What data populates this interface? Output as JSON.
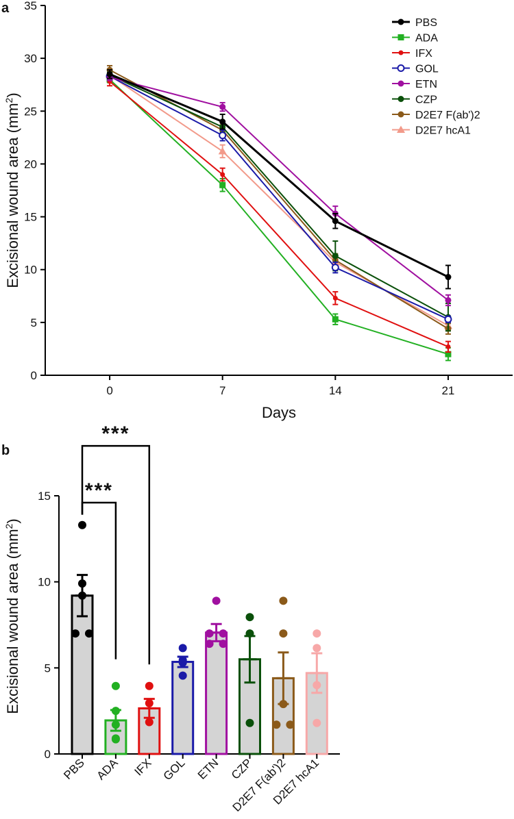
{
  "chart_data": [
    {
      "panel_label": "a",
      "type": "line",
      "xlabel": "Days",
      "ylabel_main": "Excisional wound area (mm",
      "ylabel_sup": "2",
      "ylabel_end": ")",
      "x": [
        0,
        7,
        14,
        21
      ],
      "xticks": [
        "0",
        "7",
        "14",
        "21"
      ],
      "xlim": [
        -4,
        25
      ],
      "ylim": [
        0,
        35
      ],
      "yticks": [
        "0",
        "5",
        "10",
        "15",
        "20",
        "25",
        "30",
        "35"
      ],
      "legend_position": "top-right",
      "series": [
        {
          "name": "PBS",
          "color": "#000000",
          "marker": "circle-filled",
          "values": [
            28.5,
            24.0,
            14.6,
            9.3
          ],
          "err": [
            0.4,
            0.7,
            0.7,
            1.1
          ]
        },
        {
          "name": "ADA",
          "color": "#22b022",
          "marker": "square",
          "values": [
            28.0,
            18.0,
            5.3,
            2.0
          ],
          "err": [
            0.3,
            0.6,
            0.5,
            0.6
          ]
        },
        {
          "name": "IFX",
          "color": "#e01010",
          "marker": "circle-small",
          "values": [
            27.8,
            19.0,
            7.3,
            2.7
          ],
          "err": [
            0.4,
            0.6,
            0.6,
            0.5
          ]
        },
        {
          "name": "GOL",
          "color": "#1a1aa8",
          "marker": "circle-open",
          "values": [
            28.3,
            22.7,
            10.2,
            5.3
          ],
          "err": [
            0.3,
            0.5,
            0.5,
            0.3
          ]
        },
        {
          "name": "ETN",
          "color": "#a010a0",
          "marker": "circle-filled",
          "values": [
            28.2,
            25.4,
            15.3,
            7.1
          ],
          "err": [
            0.3,
            0.4,
            0.7,
            0.5
          ]
        },
        {
          "name": "CZP",
          "color": "#0a500a",
          "marker": "circle-filled",
          "values": [
            28.4,
            23.5,
            11.3,
            5.5
          ],
          "err": [
            0.3,
            0.5,
            1.4,
            1.3
          ]
        },
        {
          "name": "D2E7 F(ab')2",
          "color": "#8b5a1a",
          "marker": "circle-filled",
          "values": [
            28.9,
            23.2,
            10.9,
            4.4
          ],
          "err": [
            0.4,
            0.5,
            0.6,
            0.5
          ]
        },
        {
          "name": "D2E7 hcA1",
          "color": "#f29a8a",
          "marker": "triangle",
          "values": [
            28.4,
            21.2,
            10.7,
            4.7
          ],
          "err": [
            0.4,
            0.6,
            0.6,
            0.5
          ]
        }
      ]
    },
    {
      "panel_label": "b",
      "type": "bar",
      "ylabel_main": "Excisional wound area (mm",
      "ylabel_sup": "2",
      "ylabel_end": ")",
      "ylim": [
        0,
        15
      ],
      "yticks": [
        "0",
        "5",
        "10",
        "15"
      ],
      "categories": [
        "PBS",
        "ADA",
        "IFX",
        "GOL",
        "ETN",
        "CZP",
        "D2E7 F(ab')2",
        "D2E7 hcA1"
      ],
      "colors": [
        "#000000",
        "#22b022",
        "#e01010",
        "#1a1aa8",
        "#a010a0",
        "#0a500a",
        "#8b5a1a",
        "#f7a8a8"
      ],
      "bar_fill": "#d4d4d4",
      "values": [
        9.2,
        1.95,
        2.65,
        5.35,
        7.05,
        5.5,
        4.4,
        4.7
      ],
      "err": [
        1.2,
        0.6,
        0.55,
        0.3,
        0.5,
        1.35,
        1.5,
        1.15
      ],
      "points": [
        [
          13.3,
          9.9,
          9.2,
          7.0,
          7.0
        ],
        [
          3.95,
          2.5,
          1.7,
          0.85,
          0.9
        ],
        [
          3.95,
          2.95,
          1.85
        ],
        [
          6.15,
          5.45,
          5.3,
          4.55
        ],
        [
          8.9,
          7.0,
          7.0,
          6.4,
          6.4
        ],
        [
          7.95,
          7.0,
          1.8
        ],
        [
          8.9,
          7.0,
          2.9,
          1.7,
          1.7
        ],
        [
          7.0,
          6.15,
          4.0,
          1.8
        ]
      ],
      "significance": [
        {
          "from": "PBS",
          "to": "ADA",
          "label": "***"
        },
        {
          "from": "PBS",
          "to": "IFX",
          "label": "***"
        }
      ]
    }
  ]
}
